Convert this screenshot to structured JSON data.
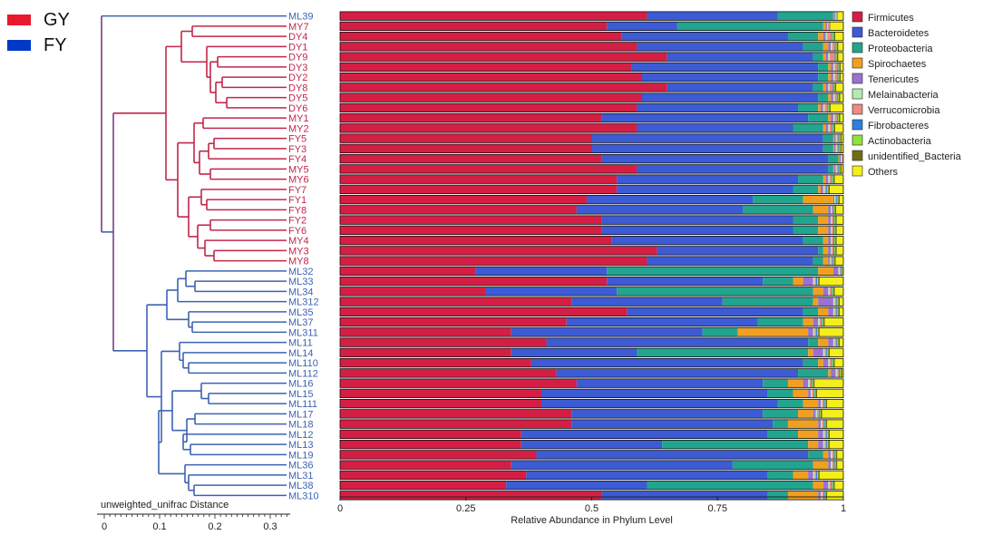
{
  "groups": [
    {
      "label": "GY",
      "color": "#e8192c"
    },
    {
      "label": "FY",
      "color": "#0038c8"
    }
  ],
  "colors": {
    "gy_branch": "#c2264a",
    "fy_branch": "#3c63b3"
  },
  "chart_data": {
    "type": "bar",
    "orientation": "horizontal",
    "stacked": true,
    "xlabel": "Relative Abundance in Phylum Level",
    "xlim": [
      0,
      1
    ],
    "xticks": [
      "0",
      "0.25",
      "0.5",
      "0.75",
      "1"
    ],
    "samples": [
      "ML39",
      "MY7",
      "DY4",
      "DY1",
      "DY9",
      "DY3",
      "DY2",
      "DY8",
      "DY5",
      "DY6",
      "MY1",
      "MY2",
      "FY5",
      "FY3",
      "FY4",
      "MY5",
      "MY6",
      "FY7",
      "FY1",
      "FY8",
      "FY2",
      "FY6",
      "MY4",
      "MY3",
      "MY8",
      "ML32",
      "ML33",
      "ML34",
      "ML312",
      "ML35",
      "ML37",
      "ML311",
      "ML11",
      "ML14",
      "ML110",
      "ML112",
      "ML16",
      "ML15",
      "ML111",
      "ML17",
      "ML18",
      "ML12",
      "ML13",
      "ML19",
      "ML36",
      "ML31",
      "ML38",
      "ML310"
    ],
    "sample_group": [
      "FY",
      "GY",
      "GY",
      "GY",
      "GY",
      "GY",
      "GY",
      "GY",
      "GY",
      "GY",
      "GY",
      "GY",
      "GY",
      "GY",
      "GY",
      "GY",
      "GY",
      "GY",
      "GY",
      "GY",
      "GY",
      "GY",
      "GY",
      "GY",
      "GY",
      "FY",
      "FY",
      "FY",
      "FY",
      "FY",
      "FY",
      "FY",
      "FY",
      "FY",
      "FY",
      "FY",
      "FY",
      "FY",
      "FY",
      "FY",
      "FY",
      "FY",
      "FY",
      "FY",
      "FY",
      "FY",
      "FY",
      "FY"
    ],
    "legend_position": "right",
    "series": [
      {
        "name": "Firmicutes",
        "color": "#d51e44",
        "values": [
          0.61,
          0.53,
          0.56,
          0.59,
          0.65,
          0.58,
          0.6,
          0.65,
          0.6,
          0.59,
          0.52,
          0.59,
          0.5,
          0.5,
          0.52,
          0.59,
          0.55,
          0.55,
          0.49,
          0.47,
          0.52,
          0.52,
          0.54,
          0.63,
          0.61,
          0.27,
          0.53,
          0.29,
          0.46,
          0.57,
          0.45,
          0.34,
          0.41,
          0.34,
          0.38,
          0.43,
          0.47,
          0.4,
          0.4,
          0.46,
          0.46,
          0.36,
          0.36,
          0.39,
          0.34,
          0.37,
          0.33,
          0.52
        ]
      },
      {
        "name": "Bacteroidetes",
        "color": "#3c5bd4",
        "values": [
          0.26,
          0.14,
          0.33,
          0.33,
          0.29,
          0.37,
          0.35,
          0.29,
          0.35,
          0.32,
          0.41,
          0.31,
          0.46,
          0.46,
          0.45,
          0.38,
          0.36,
          0.35,
          0.33,
          0.33,
          0.38,
          0.38,
          0.38,
          0.32,
          0.33,
          0.26,
          0.31,
          0.26,
          0.3,
          0.35,
          0.38,
          0.38,
          0.52,
          0.25,
          0.54,
          0.48,
          0.37,
          0.45,
          0.47,
          0.38,
          0.4,
          0.49,
          0.28,
          0.54,
          0.44,
          0.48,
          0.28,
          0.33
        ]
      },
      {
        "name": "Proteobacteria",
        "color": "#22a58e",
        "values": [
          0.11,
          0.29,
          0.06,
          0.04,
          0.02,
          0.02,
          0.02,
          0.02,
          0.02,
          0.04,
          0.04,
          0.06,
          0.02,
          0.02,
          0.02,
          0.01,
          0.05,
          0.05,
          0.1,
          0.14,
          0.05,
          0.05,
          0.04,
          0.01,
          0.02,
          0.42,
          0.06,
          0.39,
          0.18,
          0.03,
          0.09,
          0.07,
          0.02,
          0.34,
          0.03,
          0.06,
          0.05,
          0.05,
          0.05,
          0.07,
          0.03,
          0.06,
          0.29,
          0.03,
          0.16,
          0.05,
          0.33,
          0.04
        ]
      },
      {
        "name": "Spirochaetes",
        "color": "#f0a020",
        "values": [
          0.002,
          0.005,
          0.01,
          0.01,
          0.005,
          0.005,
          0.005,
          0.005,
          0.005,
          0.005,
          0.005,
          0.005,
          0.002,
          0.002,
          0.002,
          0.002,
          0.005,
          0.005,
          0.06,
          0.03,
          0.02,
          0.02,
          0.01,
          0.01,
          0.01,
          0.03,
          0.02,
          0.02,
          0.01,
          0.02,
          0.02,
          0.14,
          0.02,
          0.01,
          0.01,
          0.005,
          0.03,
          0.03,
          0.03,
          0.03,
          0.06,
          0.04,
          0.02,
          0.01,
          0.03,
          0.03,
          0.02,
          0.06
        ]
      },
      {
        "name": "Tenericutes",
        "color": "#9a72d2",
        "values": [
          0.002,
          0.003,
          0.005,
          0.005,
          0.005,
          0.005,
          0.005,
          0.005,
          0.005,
          0.005,
          0.005,
          0.005,
          0.003,
          0.003,
          0.003,
          0.003,
          0.005,
          0.005,
          0.002,
          0.005,
          0.005,
          0.005,
          0.005,
          0.005,
          0.003,
          0.01,
          0.02,
          0.01,
          0.03,
          0.01,
          0.01,
          0.01,
          0.01,
          0.02,
          0.01,
          0.01,
          0.01,
          0.005,
          0.005,
          0.005,
          0.005,
          0.01,
          0.01,
          0.005,
          0.005,
          0.01,
          0.01,
          0.005
        ]
      },
      {
        "name": "Melainabacteria",
        "color": "#b4ecb0",
        "values": [
          0.001,
          0.001,
          0.003,
          0.003,
          0.003,
          0.003,
          0.003,
          0.003,
          0.003,
          0.003,
          0.003,
          0.003,
          0.002,
          0.002,
          0.002,
          0.002,
          0.003,
          0.003,
          0.002,
          0.002,
          0.002,
          0.002,
          0.002,
          0.002,
          0.002,
          0.003,
          0.003,
          0.003,
          0.003,
          0.003,
          0.003,
          0.003,
          0.003,
          0.003,
          0.003,
          0.003,
          0.003,
          0.003,
          0.003,
          0.003,
          0.003,
          0.003,
          0.003,
          0.003,
          0.003,
          0.003,
          0.003,
          0.003
        ]
      },
      {
        "name": "Verrucomicrobia",
        "color": "#f08a82",
        "values": [
          0.001,
          0.002,
          0.008,
          0.005,
          0.01,
          0.005,
          0.005,
          0.006,
          0.004,
          0.005,
          0.004,
          0.004,
          0.003,
          0.003,
          0.003,
          0.003,
          0.003,
          0.003,
          0.002,
          0.002,
          0.003,
          0.003,
          0.003,
          0.003,
          0.003,
          0.002,
          0.003,
          0.003,
          0.003,
          0.003,
          0.003,
          0.003,
          0.003,
          0.003,
          0.003,
          0.003,
          0.003,
          0.003,
          0.003,
          0.003,
          0.003,
          0.003,
          0.003,
          0.003,
          0.003,
          0.003,
          0.003,
          0.003
        ]
      },
      {
        "name": "Fibrobacteres",
        "color": "#2f7fe0",
        "values": [
          0.001,
          0.001,
          0.002,
          0.002,
          0.002,
          0.002,
          0.002,
          0.002,
          0.002,
          0.002,
          0.002,
          0.002,
          0.002,
          0.002,
          0.002,
          0.002,
          0.002,
          0.002,
          0.002,
          0.002,
          0.002,
          0.002,
          0.002,
          0.002,
          0.002,
          0.002,
          0.002,
          0.002,
          0.002,
          0.002,
          0.002,
          0.002,
          0.002,
          0.002,
          0.002,
          0.002,
          0.002,
          0.002,
          0.002,
          0.002,
          0.002,
          0.002,
          0.002,
          0.002,
          0.002,
          0.002,
          0.002,
          0.002
        ]
      },
      {
        "name": "Actinobacteria",
        "color": "#8ee23a",
        "values": [
          0.001,
          0.001,
          0.003,
          0.002,
          0.002,
          0.002,
          0.002,
          0.002,
          0.002,
          0.002,
          0.002,
          0.002,
          0.002,
          0.002,
          0.002,
          0.002,
          0.002,
          0.002,
          0.002,
          0.002,
          0.002,
          0.002,
          0.002,
          0.002,
          0.002,
          0.002,
          0.002,
          0.002,
          0.002,
          0.002,
          0.002,
          0.002,
          0.002,
          0.002,
          0.002,
          0.002,
          0.002,
          0.002,
          0.002,
          0.002,
          0.002,
          0.002,
          0.002,
          0.002,
          0.002,
          0.002,
          0.002,
          0.002
        ]
      },
      {
        "name": "unidentified_Bacteria",
        "color": "#6f6e14",
        "values": [
          0.001,
          0.001,
          0.003,
          0.003,
          0.003,
          0.003,
          0.003,
          0.003,
          0.003,
          0.003,
          0.003,
          0.003,
          0.003,
          0.003,
          0.003,
          0.003,
          0.003,
          0.003,
          0.003,
          0.003,
          0.003,
          0.003,
          0.003,
          0.003,
          0.003,
          0.003,
          0.003,
          0.003,
          0.003,
          0.003,
          0.003,
          0.003,
          0.003,
          0.003,
          0.003,
          0.003,
          0.003,
          0.003,
          0.003,
          0.003,
          0.003,
          0.003,
          0.003,
          0.003,
          0.003,
          0.003,
          0.003,
          0.003
        ]
      },
      {
        "name": "Others",
        "color": "#f4ee1a",
        "values": [
          0.01,
          0.02,
          0.02,
          0.01,
          0.01,
          0.01,
          0.01,
          0.01,
          0.01,
          0.02,
          0.01,
          0.01,
          0.01,
          0.01,
          0.01,
          0.01,
          0.02,
          0.02,
          0.01,
          0.01,
          0.01,
          0.01,
          0.01,
          0.01,
          0.01,
          0.01,
          0.04,
          0.01,
          0.02,
          0.01,
          0.01,
          0.01,
          0.02,
          0.01,
          0.02,
          0.01,
          0.04,
          0.05,
          0.03,
          0.03,
          0.02,
          0.02,
          0.02,
          0.02,
          0.02,
          0.04,
          0.02,
          0.03
        ]
      }
    ],
    "tree_scale": {
      "label": "unweighted_unifrac Distance",
      "ticks": [
        "0",
        "0.1",
        "0.2",
        "0.3"
      ]
    }
  }
}
